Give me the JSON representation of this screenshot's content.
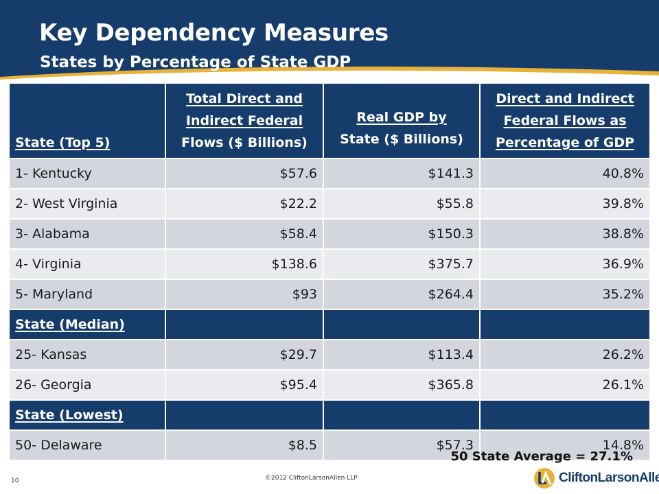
{
  "slide": {
    "title": "Key Dependency Measures",
    "subtitle": "States by Percentage of State GDP",
    "page_number": "10",
    "copyright": "©2012 CliftonLarsonAllen LLP",
    "footnote": "50 State Average = 27.1%",
    "logo_text": "CliftonLarsonAllen"
  },
  "table": {
    "headers": {
      "state": "State (Top 5)",
      "flows": [
        "Total Direct and",
        "Indirect Federal",
        "Flows ($ Billions)"
      ],
      "gdp": [
        "Real GDP by",
        "State ($ Billions)"
      ],
      "pct": [
        "Direct and Indirect",
        "Federal Flows as",
        "Percentage of GDP"
      ]
    },
    "top5": [
      {
        "state": "1- Kentucky",
        "flows": "$57.6",
        "gdp": "$141.3",
        "pct": "40.8%"
      },
      {
        "state": "2- West Virginia",
        "flows": "$22.2",
        "gdp": "$55.8",
        "pct": "39.8%"
      },
      {
        "state": "3- Alabama",
        "flows": "$58.4",
        "gdp": "$150.3",
        "pct": "38.8%"
      },
      {
        "state": "4- Virginia",
        "flows": "$138.6",
        "gdp": "$375.7",
        "pct": "36.9%"
      },
      {
        "state": "5- Maryland",
        "flows": "$93",
        "gdp": "$264.4",
        "pct": "35.2%"
      }
    ],
    "median_label": "State (Median)",
    "median": [
      {
        "state": "25- Kansas",
        "flows": "$29.7",
        "gdp": "$113.4",
        "pct": "26.2%"
      },
      {
        "state": "26- Georgia",
        "flows": "$95.4",
        "gdp": "$365.8",
        "pct": "26.1%"
      }
    ],
    "lowest_label": "State (Lowest)",
    "lowest": [
      {
        "state": "50- Delaware",
        "flows": "$8.5",
        "gdp": "$57.3",
        "pct": "14.8%"
      }
    ]
  }
}
